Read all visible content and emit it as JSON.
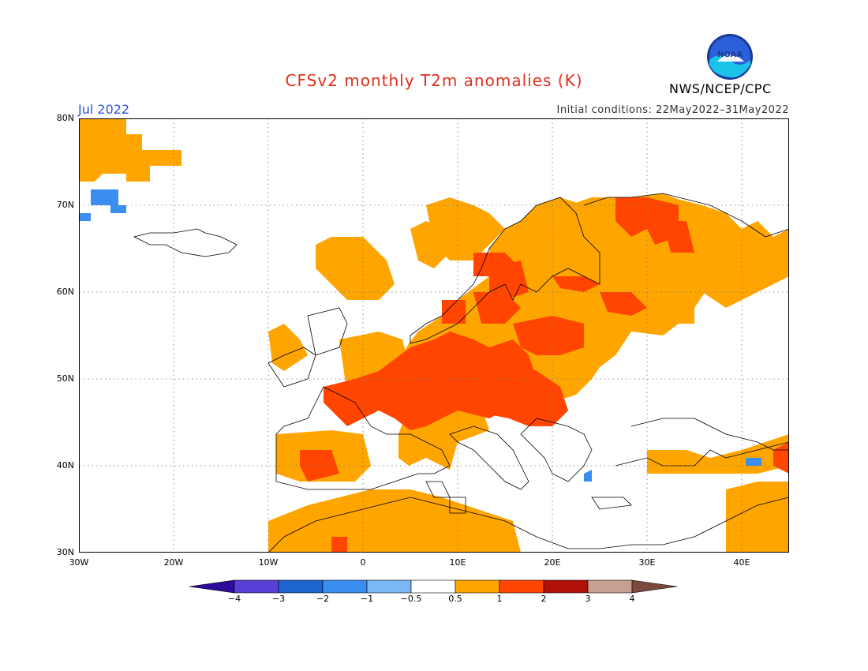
{
  "title": "CFSv2 monthly T2m anomalies (K)",
  "month": "Jul 2022",
  "initial_conditions": "Initial conditions: 22May2022–31May2022",
  "organization": "NWS/NCEP/CPC",
  "logo_text": "NOAA",
  "map": {
    "lon_min": -30,
    "lon_max": 45,
    "lat_min": 30,
    "lat_max": 80,
    "lat_ticks": [
      "80N",
      "70N",
      "60N",
      "50N",
      "40N",
      "30N"
    ],
    "lon_ticks": [
      "30W",
      "20W",
      "10W",
      "0",
      "10E",
      "20E",
      "30E",
      "40E"
    ]
  },
  "colorbar": {
    "labels": [
      "−4",
      "−3",
      "−2",
      "−1",
      "−0.5",
      "0.5",
      "1",
      "2",
      "3",
      "4"
    ],
    "colors": [
      "#2e0a9c",
      "#5a3fd6",
      "#1e64d0",
      "#3a8ef0",
      "#7ab8f5",
      "#ffffff",
      "#ffa500",
      "#ff4500",
      "#b0120a",
      "#c8a092",
      "#7a4a3c"
    ]
  }
}
